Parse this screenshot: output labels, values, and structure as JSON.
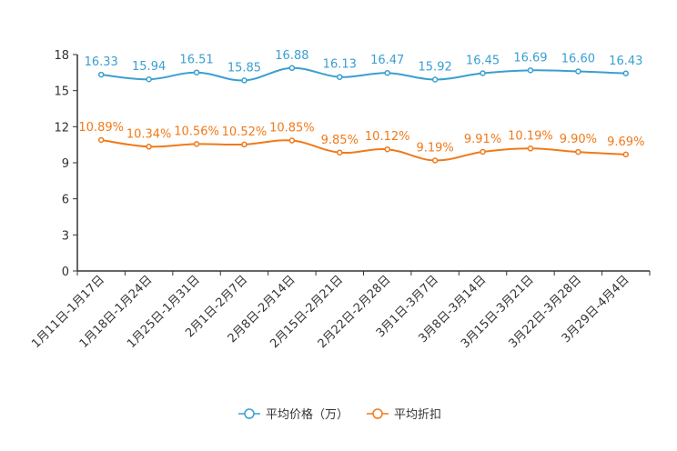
{
  "chart_data": {
    "type": "line",
    "categories": [
      "1月11日-1月17日",
      "1月18日-1月24日",
      "1月25日-1月31日",
      "2月1日-2月7日",
      "2月8日-2月14日",
      "2月15日-2月21日",
      "2月22日-2月28日",
      "3月1日-3月7日",
      "3月8日-3月14日",
      "3月15日-3月21日",
      "3月22日-3月28日",
      "3月29日-4月4日"
    ],
    "ylim": [
      0,
      18
    ],
    "yticks": [
      0,
      3,
      6,
      9,
      12,
      15,
      18
    ],
    "series": [
      {
        "name": "平均价格（万）",
        "color": "#3a9fd0",
        "values": [
          16.33,
          15.94,
          16.51,
          15.85,
          16.88,
          16.13,
          16.47,
          15.92,
          16.45,
          16.69,
          16.6,
          16.43
        ],
        "labels": [
          "16.33",
          "15.94",
          "16.51",
          "15.85",
          "16.88",
          "16.13",
          "16.47",
          "15.92",
          "16.45",
          "16.69",
          "16.60",
          "16.43"
        ]
      },
      {
        "name": "平均折扣",
        "color": "#f07a1a",
        "values": [
          10.89,
          10.34,
          10.56,
          10.52,
          10.85,
          9.85,
          10.12,
          9.19,
          9.91,
          10.19,
          9.9,
          9.69
        ],
        "labels": [
          "10.89%",
          "10.34%",
          "10.56%",
          "10.52%",
          "10.85%",
          "9.85%",
          "10.12%",
          "9.19%",
          "9.91%",
          "10.19%",
          "9.90%",
          "9.69%"
        ]
      }
    ],
    "legend": "bottom-center"
  }
}
